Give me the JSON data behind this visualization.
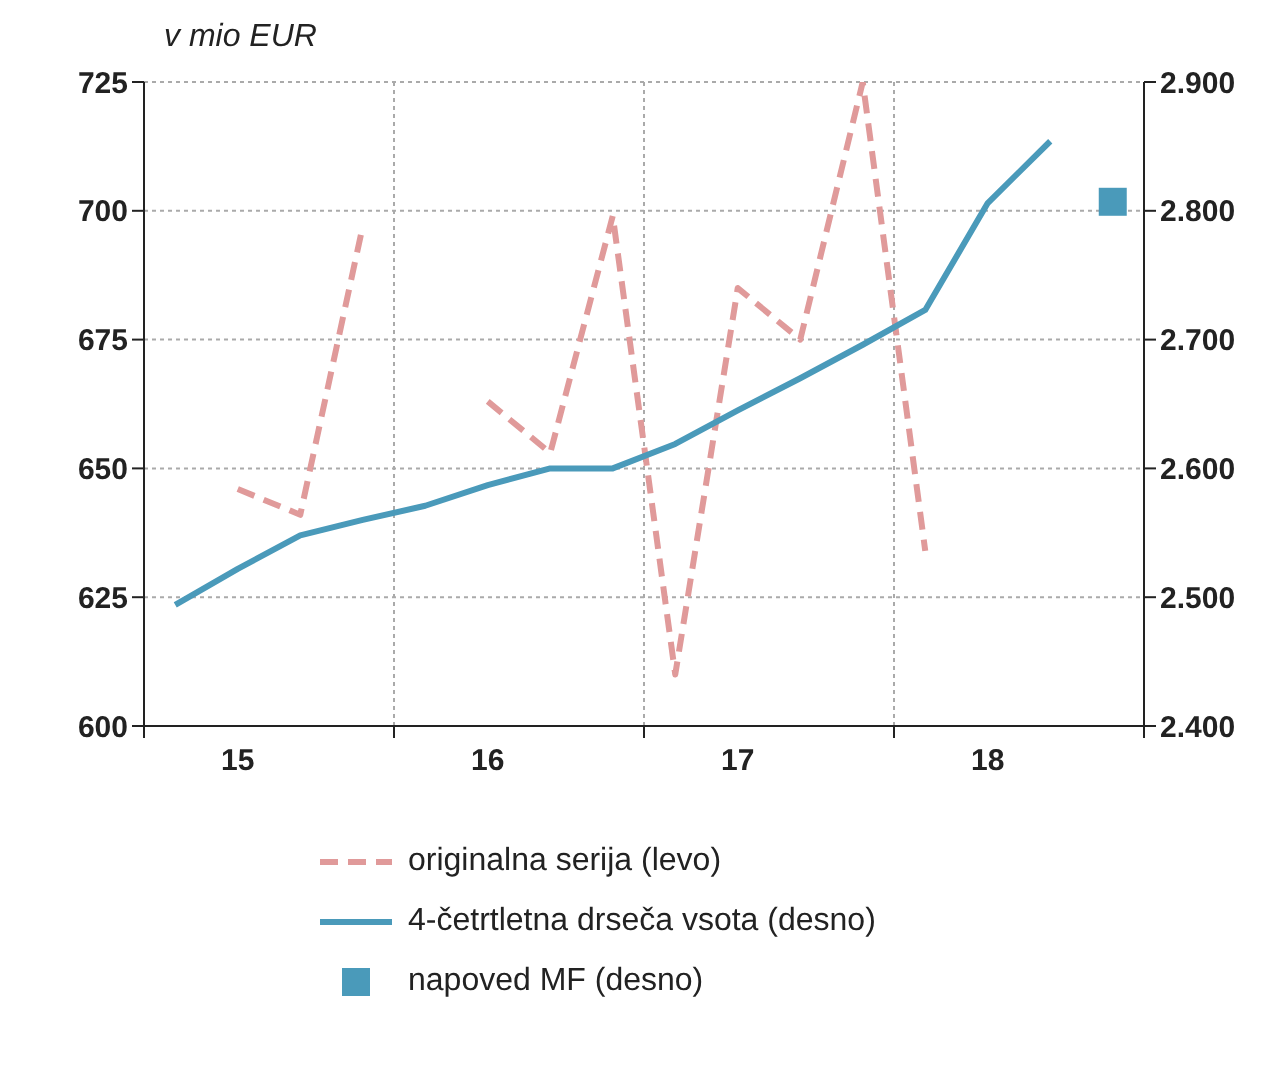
{
  "chart_data": {
    "type": "line",
    "ylabel": "v mio EUR",
    "categories": [
      null,
      "15",
      null,
      null,
      null,
      "16",
      null,
      null,
      null,
      "17",
      null,
      null,
      null,
      "18",
      null,
      null
    ],
    "ylim": [
      600,
      725
    ],
    "yticks": [
      600,
      625,
      650,
      675,
      700,
      725
    ],
    "y2lim": [
      2400,
      2900
    ],
    "y2ticks": [
      {
        "value": 2400,
        "label": "2.400"
      },
      {
        "value": 2500,
        "label": "2.500"
      },
      {
        "value": 2600,
        "label": "2.600"
      },
      {
        "value": 2700,
        "label": "2.700"
      },
      {
        "value": 2800,
        "label": "2.800"
      },
      {
        "value": 2900,
        "label": "2.900"
      }
    ],
    "grid": true,
    "legend": "bottom",
    "series": [
      {
        "name": "originalna serija (levo)",
        "color": "#e09a9a",
        "line_style": "dashed",
        "marker": "none",
        "values": [
          null,
          646,
          641,
          697,
          null,
          663,
          653,
          699,
          610,
          685,
          675,
          725,
          634,
          null,
          null,
          null
        ]
      },
      {
        "name": "4-četrtletna drseča vsota (desno)",
        "color": "#4a9aba",
        "axis": "y2",
        "line_style": "solid",
        "marker": "none",
        "values": [
          2494,
          2522,
          2548,
          2560,
          2571,
          2587,
          2600,
          2600,
          2619,
          2645,
          2670,
          2696,
          2723,
          2806,
          2854,
          null
        ]
      },
      {
        "name": "napoved MF (desno)",
        "type": "scatter",
        "color": "#4a9aba",
        "axis": "y2",
        "marker": "square",
        "values": [
          null,
          null,
          null,
          null,
          null,
          null,
          null,
          null,
          null,
          null,
          null,
          null,
          null,
          null,
          null,
          2807
        ]
      }
    ]
  }
}
